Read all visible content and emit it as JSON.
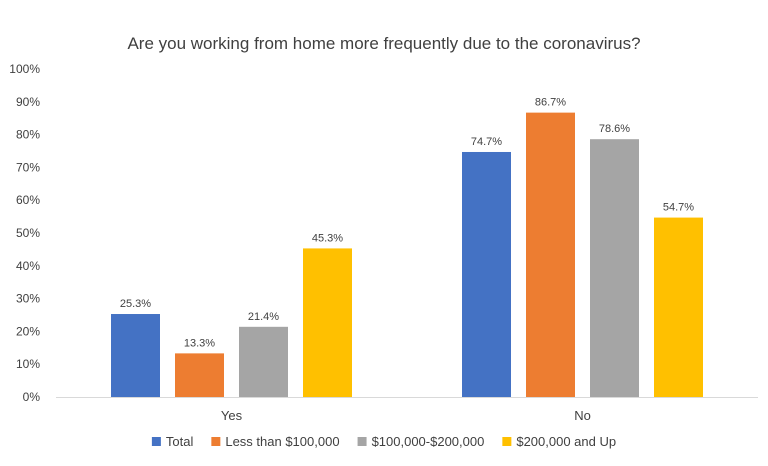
{
  "chart_data": {
    "type": "bar",
    "title": "Are you working from home more frequently due to the coronavirus?",
    "categories": [
      "Yes",
      "No"
    ],
    "series": [
      {
        "name": "Total",
        "values": [
          25.3,
          74.7
        ],
        "color": "#4472C4"
      },
      {
        "name": "Less than $100,000",
        "values": [
          13.3,
          86.7
        ],
        "color": "#ED7D31"
      },
      {
        "name": "$100,000-$200,000",
        "values": [
          21.4,
          78.6
        ],
        "color": "#A5A5A5"
      },
      {
        "name": "$200,000 and Up",
        "values": [
          45.3,
          54.7
        ],
        "color": "#FFC000"
      }
    ],
    "value_format": "percent_1dp",
    "yticks": [
      "0%",
      "10%",
      "20%",
      "30%",
      "40%",
      "50%",
      "60%",
      "70%",
      "80%",
      "90%",
      "100%"
    ],
    "ylim": [
      0,
      100
    ],
    "xlabel": "",
    "ylabel": "",
    "grid": false,
    "legend_position": "bottom"
  }
}
